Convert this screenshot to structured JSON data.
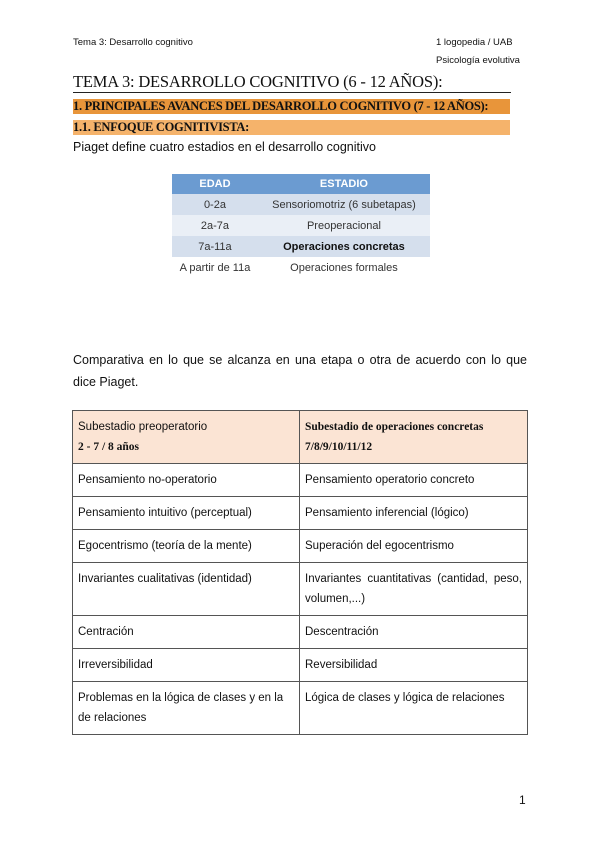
{
  "header": {
    "left": "Tema 3: Desarrollo cognitivo",
    "right_line1": "1 logopedia / UAB",
    "right_line2": "Psicología evolutiva"
  },
  "title": "TEMA 3: DESARROLLO COGNITIVO (6 - 12 AÑOS):",
  "section1": "1. PRINCIPALES AVANCES DEL DESARROLLO COGNITIVO (7 - 12 AÑOS):",
  "section11": "1.1. ENFOQUE COGNITIVISTA:",
  "intro": "Piaget define cuatro estadios en el desarrollo cognitivo",
  "stages": {
    "headers": [
      "EDAD",
      "ESTADIO"
    ],
    "rows": [
      [
        "0-2a",
        "Sensoriomotriz (6 subetapas)"
      ],
      [
        "2a-7a",
        "Preoperacional"
      ],
      [
        "7a-11a",
        "Operaciones concretas"
      ],
      [
        "A partir de 11a",
        "Operaciones formales"
      ]
    ]
  },
  "comparison_text": "Comparativa en lo que se alcanza en una etapa o otra de acuerdo con lo que dice Piaget.",
  "comparison": {
    "head": [
      {
        "line1": "Subestadio preoperatorio",
        "line2": "2 - 7 / 8 años"
      },
      {
        "line1": "Subestadio de operaciones concretas",
        "line2": "7/8/9/10/11/12"
      }
    ],
    "rows": [
      [
        "Pensamiento no-operatorio",
        "Pensamiento operatorio concreto"
      ],
      [
        "Pensamiento intuitivo (perceptual)",
        "Pensamiento inferencial (lógico)"
      ],
      [
        "Egocentrismo (teoría de la mente)",
        "Superación del egocentrismo"
      ],
      [
        "Invariantes cualitativas (identidad)",
        "Invariantes cuantitativas (cantidad, peso, volumen,...)"
      ],
      [
        "Centración",
        "Descentración"
      ],
      [
        "Irreversibilidad",
        "Reversibilidad"
      ],
      [
        "Problemas en la lógica de clases y en la de relaciones",
        "Lógica de clases y lógica de relaciones"
      ]
    ]
  },
  "page_number": "1"
}
